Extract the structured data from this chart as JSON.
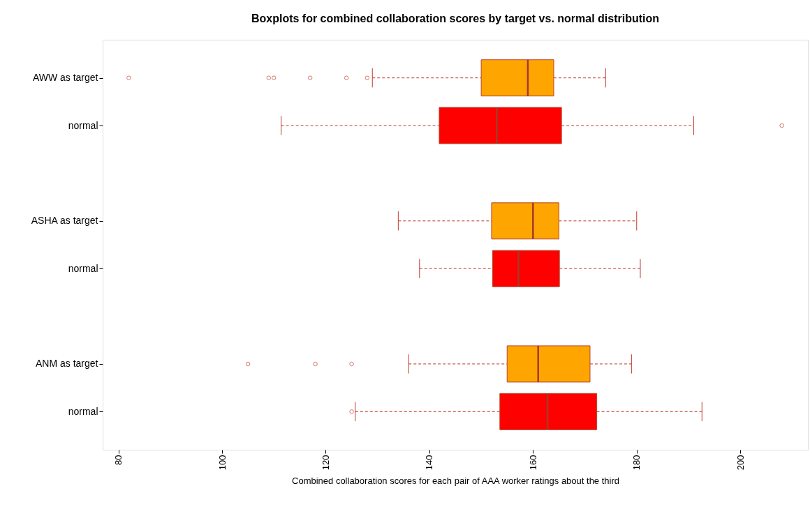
{
  "chart_data": {
    "type": "box",
    "orientation": "horizontal",
    "title": "Boxplots for combined collaboration scores by target vs. normal distribution",
    "xlabel": "Combined collaboration scores for each pair of AAA worker ratings about the third",
    "categories": [
      "AWW as target",
      "normal",
      "ASHA as target",
      "normal",
      "ANM as target",
      "normal"
    ],
    "boxes": [
      {
        "low": 129,
        "q1": 150,
        "median": 159,
        "q3": 164,
        "high": 174,
        "outliers": [
          82,
          109,
          110,
          117,
          124,
          128
        ]
      },
      {
        "low": 111.4,
        "q1": 141.9,
        "median": 153,
        "q3": 165.5,
        "high": 191,
        "outliers": [
          208
        ]
      },
      {
        "low": 134,
        "q1": 152,
        "median": 160,
        "q3": 165,
        "high": 180
      },
      {
        "low": 138.1,
        "q1": 152.2,
        "median": 157.2,
        "q3": 165.1,
        "high": 180.7
      },
      {
        "low": 136,
        "q1": 155,
        "median": 161,
        "q3": 171,
        "high": 179,
        "outliers": [
          105,
          118,
          125
        ]
      },
      {
        "low": 125.7,
        "q1": 153.6,
        "median": 162.8,
        "q3": 172.3,
        "high": 192.6,
        "outliers": [
          125
        ]
      }
    ],
    "colors": [
      "#ffa500",
      "#ff0000",
      "#ffa500",
      "#ff0000",
      "#ffa500",
      "#ff0000"
    ],
    "xlim": [
      76.96,
      213.04
    ],
    "xticks": [
      80,
      100,
      120,
      140,
      160,
      180,
      200
    ],
    "grid": false
  }
}
